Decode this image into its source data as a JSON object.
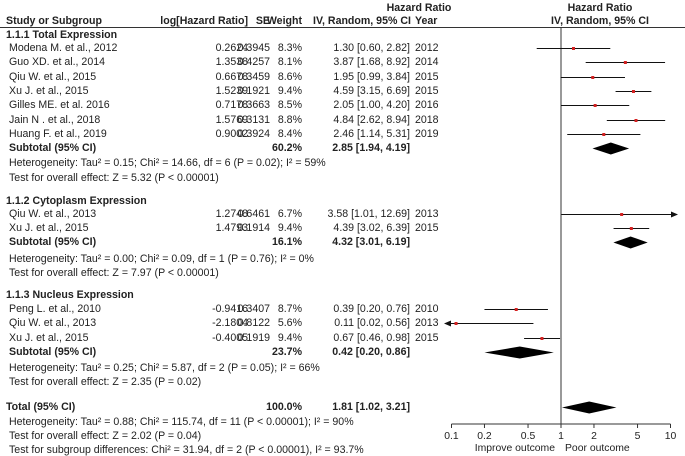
{
  "headers": {
    "study": "Study or Subgroup",
    "log_hr": "log[Hazard Ratio]",
    "se": "SE",
    "weight": "Weight",
    "hr_title": "Hazard Ratio",
    "hr_sub": "IV, Random, 95% CI",
    "year": "Year",
    "plot_title": "Hazard Ratio",
    "plot_sub": "IV, Random, 95% CI"
  },
  "chart_data": {
    "type": "forest",
    "scale": "log",
    "xlim": [
      0.1,
      10
    ],
    "ticks": [
      "0.1",
      "0.2",
      "0.5",
      "1",
      "2",
      "5",
      "10"
    ],
    "tick_values": [
      0.1,
      0.2,
      0.5,
      1,
      2,
      5,
      10
    ],
    "xlabel_left": "Improve outcome",
    "xlabel_right": "Poor outcome",
    "groups": [
      {
        "title": "1.1.1 Total Expression",
        "studies": [
          {
            "name": "Modena M. et al., 2012",
            "loghr": "0.2624",
            "se": "0.3945",
            "weight": "8.3%",
            "ci": "1.30 [0.60, 2.82]",
            "year": "2012",
            "hr": 1.3,
            "lo": 0.6,
            "hi": 2.82
          },
          {
            "name": "Guo XD. et al., 2014",
            "loghr": "1.3538",
            "se": "0.4257",
            "weight": "8.1%",
            "ci": "3.87 [1.68, 8.92]",
            "year": "2014",
            "hr": 3.87,
            "lo": 1.68,
            "hi": 8.92
          },
          {
            "name": "Qiu W. et al., 2015",
            "loghr": "0.6678",
            "se": "0.3459",
            "weight": "8.6%",
            "ci": "1.95 [0.99, 3.84]",
            "year": "2015",
            "hr": 1.95,
            "lo": 0.99,
            "hi": 3.84
          },
          {
            "name": "Xu J. et al., 2015",
            "loghr": "1.5239",
            "se": "0.1921",
            "weight": "9.4%",
            "ci": "4.59 [3.15, 6.69]",
            "year": "2015",
            "hr": 4.59,
            "lo": 3.15,
            "hi": 6.69
          },
          {
            "name": "Gilles ME. et al. 2016",
            "loghr": "0.7178",
            "se": "0.3663",
            "weight": "8.5%",
            "ci": "2.05 [1.00, 4.20]",
            "year": "2016",
            "hr": 2.05,
            "lo": 1.0,
            "hi": 4.2
          },
          {
            "name": "Jain N . et al., 2018",
            "loghr": "1.5769",
            "se": "0.3131",
            "weight": "8.8%",
            "ci": "4.84 [2.62, 8.94]",
            "year": "2018",
            "hr": 4.84,
            "lo": 2.62,
            "hi": 8.94
          },
          {
            "name": "Huang F. et al., 2019",
            "loghr": "0.9002",
            "se": "0.3924",
            "weight": "8.4%",
            "ci": "2.46 [1.14, 5.31]",
            "year": "2019",
            "hr": 2.46,
            "lo": 1.14,
            "hi": 5.31
          }
        ],
        "subtotal": {
          "label": "Subtotal (95% CI)",
          "weight": "60.2%",
          "ci": "2.85 [1.94, 4.19]",
          "hr": 2.85,
          "lo": 1.94,
          "hi": 4.19
        },
        "heterogeneity": "Heterogeneity: Tau² = 0.15; Chi² = 14.66, df = 6 (P = 0.02); I² = 59%",
        "overall_test": "Test for overall effect: Z = 5.32 (P < 0.00001)"
      },
      {
        "title": "1.1.2 Cytoplasm Expression",
        "studies": [
          {
            "name": "Qiu W. et al., 2013",
            "loghr": "1.2748",
            "se": "0.6461",
            "weight": "6.7%",
            "ci": "3.58 [1.01, 12.69]",
            "year": "2013",
            "hr": 3.58,
            "lo": 1.01,
            "hi": 12.69
          },
          {
            "name": "Xu J. et al., 2015",
            "loghr": "1.4793",
            "se": "0.1914",
            "weight": "9.4%",
            "ci": "4.39 [3.02, 6.39]",
            "year": "2015",
            "hr": 4.39,
            "lo": 3.02,
            "hi": 6.39
          }
        ],
        "subtotal": {
          "label": "Subtotal (95% CI)",
          "weight": "16.1%",
          "ci": "4.32 [3.01, 6.19]",
          "hr": 4.32,
          "lo": 3.01,
          "hi": 6.19
        },
        "heterogeneity": "Heterogeneity: Tau² = 0.00; Chi² = 0.09, df = 1 (P = 0.76); I² = 0%",
        "overall_test": "Test for overall effect: Z = 7.97 (P < 0.00001)"
      },
      {
        "title": "1.1.3 Nucleus Expression",
        "studies": [
          {
            "name": "Peng L. et al., 2010",
            "loghr": "-0.9416",
            "se": "0.3407",
            "weight": "8.7%",
            "ci": "0.39 [0.20, 0.76]",
            "year": "2010",
            "hr": 0.39,
            "lo": 0.2,
            "hi": 0.76
          },
          {
            "name": "Qiu W. et al., 2013",
            "loghr": "-2.1804",
            "se": "0.8122",
            "weight": "5.6%",
            "ci": "0.11 [0.02, 0.56]",
            "year": "2013",
            "hr": 0.11,
            "lo": 0.02,
            "hi": 0.56
          },
          {
            "name": "Xu J. et al., 2015",
            "loghr": "-0.4005",
            "se": "0.1919",
            "weight": "9.4%",
            "ci": "0.67 [0.46, 0.98]",
            "year": "2015",
            "hr": 0.67,
            "lo": 0.46,
            "hi": 0.98
          }
        ],
        "subtotal": {
          "label": "Subtotal (95% CI)",
          "weight": "23.7%",
          "ci": "0.42 [0.20, 0.86]",
          "hr": 0.42,
          "lo": 0.2,
          "hi": 0.86
        },
        "heterogeneity": "Heterogeneity: Tau² = 0.25; Chi² = 5.87, df = 2 (P = 0.05); I² = 66%",
        "overall_test": "Test for overall effect: Z = 2.35 (P = 0.02)"
      }
    ],
    "total": {
      "label": "Total (95% CI)",
      "weight": "100.0%",
      "ci": "1.81 [1.02, 3.21]",
      "hr": 1.81,
      "lo": 1.02,
      "hi": 3.21
    },
    "total_heterogeneity": "Heterogeneity: Tau² = 0.88; Chi² = 115.74, df = 11 (P < 0.00001); I² = 90%",
    "total_overall_test": "Test for overall effect: Z = 2.02 (P = 0.04)",
    "subgroup_test": "Test for subgroup differences: Chi² = 31.94, df = 2 (P < 0.00001), I² = 93.7%",
    "colors": {
      "marker": "#d42020",
      "line": "#111111",
      "diamond": "#000000"
    }
  }
}
